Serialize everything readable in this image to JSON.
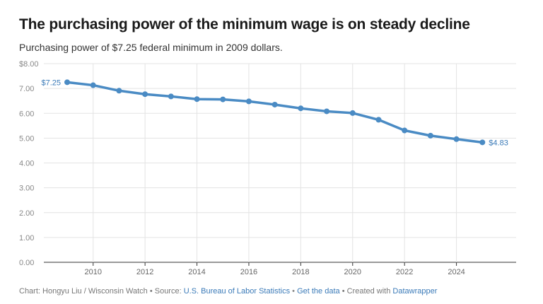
{
  "chart_data": {
    "type": "line",
    "title": "The purchasing power of the minimum wage is on steady decline",
    "subtitle": "Purchasing power of $7.25 federal minimum in 2009 dollars.",
    "x": [
      2009,
      2010,
      2011,
      2012,
      2013,
      2014,
      2015,
      2016,
      2017,
      2018,
      2019,
      2020,
      2021,
      2022,
      2023,
      2024,
      2025
    ],
    "series": [
      {
        "values": [
          7.25,
          7.13,
          6.91,
          6.77,
          6.68,
          6.57,
          6.56,
          6.48,
          6.35,
          6.2,
          6.08,
          6.01,
          5.74,
          5.31,
          5.1,
          4.96,
          4.83
        ]
      }
    ],
    "xlim": [
      2008.1,
      2026.3
    ],
    "ylim": [
      0,
      8
    ],
    "x_ticks": [
      2010,
      2012,
      2014,
      2016,
      2018,
      2020,
      2022,
      2024
    ],
    "y_ticks": [
      {
        "value": 0,
        "label": "0.00"
      },
      {
        "value": 1,
        "label": "1.00"
      },
      {
        "value": 2,
        "label": "2.00"
      },
      {
        "value": 3,
        "label": "3.00"
      },
      {
        "value": 4,
        "label": "4.00"
      },
      {
        "value": 5,
        "label": "5.00"
      },
      {
        "value": 6,
        "label": "6.00"
      },
      {
        "value": 7,
        "label": "7.00"
      },
      {
        "value": 8,
        "label": "$8.00"
      }
    ],
    "annotations": [
      {
        "x": 2009,
        "y": 7.25,
        "text": "$7.25",
        "side": "left"
      },
      {
        "x": 2025,
        "y": 4.83,
        "text": "$4.83",
        "side": "right"
      }
    ],
    "grid": true,
    "line_color": "#4a8bc4",
    "annotation_color": "#3a7ab8"
  },
  "footer": {
    "prefix": "Chart: Hongyu Liu / Wisconsin Watch • Source: ",
    "source_link": "U.S. Bureau of Labor Statistics",
    "sep1": " • ",
    "data_link": "Get the data",
    "mid": " • Created with ",
    "tool_link": "Datawrapper"
  }
}
